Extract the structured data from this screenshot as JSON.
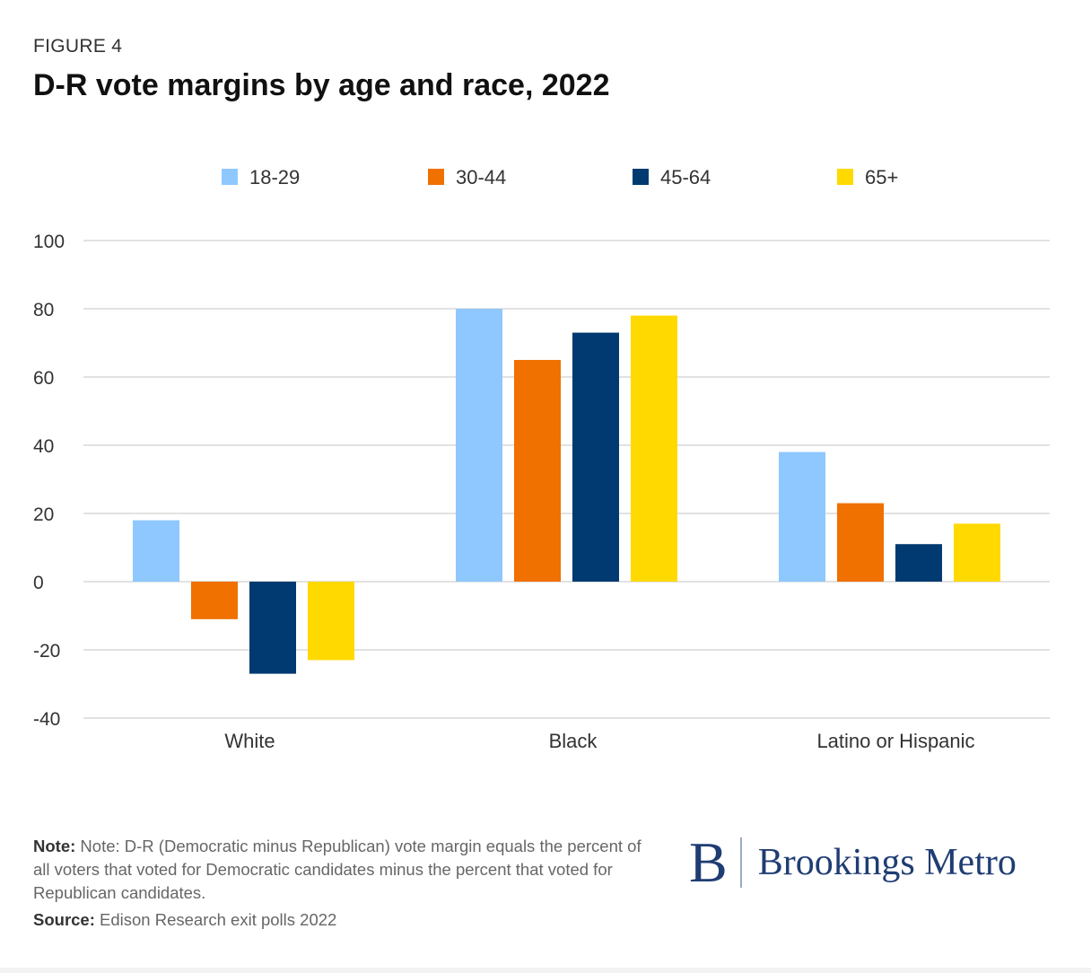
{
  "figure_label": "FIGURE 4",
  "title": "D-R vote margins by age and race, 2022",
  "chart_data": {
    "type": "bar",
    "categories": [
      "White",
      "Black",
      "Latino or Hispanic"
    ],
    "series": [
      {
        "name": "18-29",
        "color": "#8ec8ff",
        "values": [
          18,
          80,
          38
        ]
      },
      {
        "name": "30-44",
        "color": "#f07000",
        "values": [
          -11,
          65,
          23
        ]
      },
      {
        "name": "45-64",
        "color": "#003a70",
        "values": [
          -27,
          73,
          11
        ]
      },
      {
        "name": "65+",
        "color": "#ffd900",
        "values": [
          -23,
          78,
          17
        ]
      }
    ],
    "ylim": [
      -40,
      100
    ],
    "yticks": [
      "100",
      "80",
      "60",
      "40",
      "20",
      "0",
      "-20",
      "-40"
    ],
    "xlabel": "",
    "ylabel": "",
    "grid": true,
    "legend_position": "top"
  },
  "footer": {
    "note_label": "Note:",
    "note_text": "Note: D-R (Democratic minus Republican) vote margin equals the percent of all voters that voted for Democratic candidates minus the percent that voted for Republican candidates.",
    "source_label": "Source:",
    "source_text": "Edison Research exit polls 2022"
  },
  "brand": {
    "monogram": "B",
    "name": "Brookings Metro",
    "color": "#1f3d73"
  }
}
